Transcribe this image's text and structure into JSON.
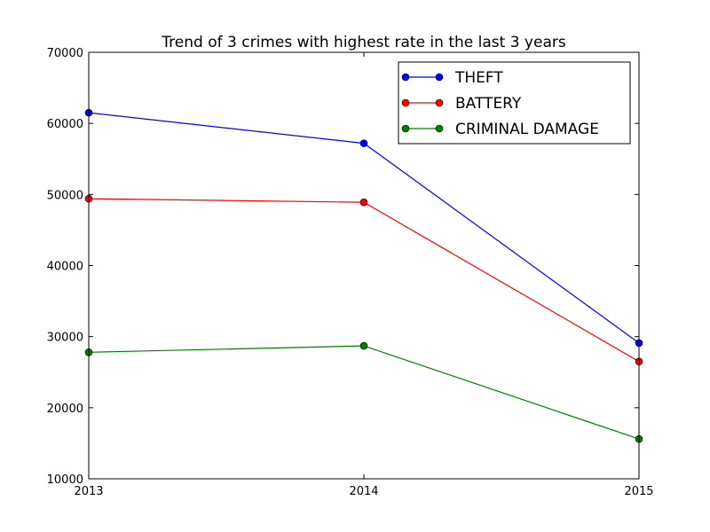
{
  "chart_data": {
    "type": "line",
    "title": "Trend of 3 crimes with highest rate in the last 3 years",
    "xlabel": "",
    "ylabel": "",
    "x": [
      2013,
      2014,
      2015
    ],
    "x_tick_labels": [
      "2013",
      "2014",
      "2015"
    ],
    "ylim": [
      10000,
      70000
    ],
    "y_ticks": [
      10000,
      20000,
      30000,
      40000,
      50000,
      60000,
      70000
    ],
    "y_tick_labels": [
      "10000",
      "20000",
      "30000",
      "40000",
      "50000",
      "60000",
      "70000"
    ],
    "grid": false,
    "legend_position": "top-right",
    "series": [
      {
        "name": "THEFT",
        "color": "#0000ff",
        "values": [
          61500,
          57200,
          29100
        ]
      },
      {
        "name": "BATTERY",
        "color": "#ff0000",
        "values": [
          49400,
          48900,
          26500
        ]
      },
      {
        "name": "CRIMINAL DAMAGE",
        "color": "#008000",
        "values": [
          27800,
          28700,
          15600
        ]
      }
    ]
  }
}
